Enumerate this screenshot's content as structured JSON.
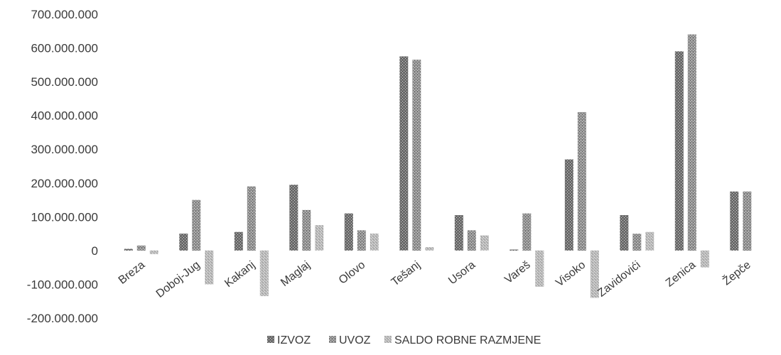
{
  "chart_data": {
    "type": "bar",
    "categories": [
      "Breza",
      "Doboj-Jug",
      "Kakanj",
      "Maglaj",
      "Olovo",
      "Tešanj",
      "Usora",
      "Vareš",
      "Visoko",
      "Zavidovići",
      "Zenica",
      "Žepče"
    ],
    "series": [
      {
        "name": "IZVOZ",
        "values": [
          5000000,
          50000000,
          55000000,
          195000000,
          110000000,
          575000000,
          105000000,
          3000000,
          270000000,
          105000000,
          590000000,
          175000000
        ],
        "color": "#6a6a6a"
      },
      {
        "name": "UVOZ",
        "values": [
          15000000,
          150000000,
          190000000,
          120000000,
          60000000,
          565000000,
          60000000,
          110000000,
          410000000,
          50000000,
          640000000,
          175000000
        ],
        "color": "#8c8c8c"
      },
      {
        "name": "SALDO ROBNE RAZMJENE",
        "values": [
          -10000000,
          -100000000,
          -135000000,
          75000000,
          50000000,
          10000000,
          45000000,
          -107000000,
          -140000000,
          55000000,
          -50000000,
          0
        ],
        "color": "#b3b3b3"
      }
    ],
    "y_ticks": [
      "700.000.000",
      "600.000.000",
      "500.000.000",
      "400.000.000",
      "300.000.000",
      "200.000.000",
      "100.000.000",
      "0",
      "-100.000.000",
      "-200.000.000"
    ],
    "ylim": [
      -200000000,
      700000000
    ],
    "grid": false,
    "legend_position": "bottom"
  }
}
